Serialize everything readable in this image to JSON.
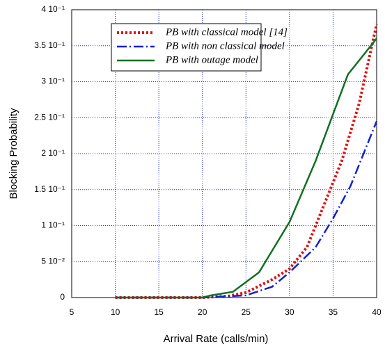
{
  "chart_data": {
    "type": "line",
    "xlabel": "Arrival Rate (calls/min)",
    "ylabel": "Blocking Probability",
    "xlim": [
      5,
      40
    ],
    "xticks": [
      5,
      10,
      15,
      20,
      25,
      30,
      35,
      40
    ],
    "ylim": [
      0,
      0.4
    ],
    "yticks": [
      0,
      {
        "value": 0.05,
        "label": "5 10⁻²"
      },
      {
        "value": 0.1,
        "label": "1 10⁻¹"
      },
      {
        "value": 0.15,
        "label": "1.5 10⁻¹"
      },
      {
        "value": 0.2,
        "label": "2 10⁻¹"
      },
      {
        "value": 0.25,
        "label": "2.5 10⁻¹"
      },
      {
        "value": 0.3,
        "label": "3 10⁻¹"
      },
      {
        "value": 0.35,
        "label": "3.5 10⁻¹"
      },
      {
        "value": 0.4,
        "label": "4 10⁻¹"
      }
    ],
    "grid": true,
    "legend": "upper left",
    "series": [
      {
        "name": "PB with classical model [14]",
        "color": "#e01010",
        "linestyle": "dotted",
        "x": [
          10,
          20,
          23,
          25,
          28,
          30,
          32,
          34,
          36,
          38,
          40
        ],
        "values": [
          0,
          0,
          0.002,
          0.007,
          0.025,
          0.04,
          0.07,
          0.13,
          0.19,
          0.27,
          0.38
        ]
      },
      {
        "name": "PB with non classical model",
        "color": "#1020d0",
        "linestyle": "dashdot",
        "x": [
          10,
          20,
          25,
          28,
          30,
          33,
          35,
          37,
          40
        ],
        "values": [
          0,
          0,
          0.003,
          0.015,
          0.035,
          0.07,
          0.11,
          0.155,
          0.245
        ]
      },
      {
        "name": "PB with outage model",
        "color": "#107020",
        "linestyle": "solid",
        "x": [
          10,
          20,
          21,
          23.5,
          26.5,
          30,
          33,
          35,
          36.7,
          40
        ],
        "values": [
          0,
          0,
          0.003,
          0.008,
          0.035,
          0.105,
          0.19,
          0.255,
          0.31,
          0.36
        ]
      }
    ]
  }
}
